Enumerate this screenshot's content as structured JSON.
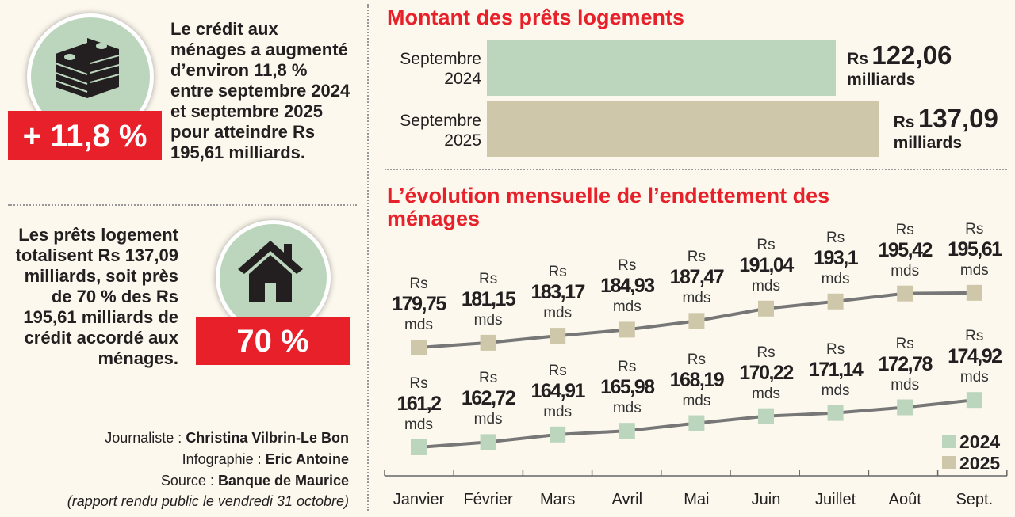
{
  "left": {
    "stat1": {
      "icon": "money-stack-icon",
      "badge": "+ 11,8 %",
      "text": "Le crédit aux ménages a augmenté d’environ 11,8 % entre septembre 2024 et septembre 2025 pour atteindre Rs 195,61 milliards."
    },
    "stat2": {
      "icon": "house-icon",
      "badge": "70 %",
      "text": "Les prêts logement totalisent Rs 137,09 milliards, soit près de 70 % des Rs 195,61 milliards de crédit accordé aux ménages."
    },
    "credits": {
      "journaliste_label": "Journaliste : ",
      "journaliste": "Christina Vilbrin-Le Bon",
      "infographie_label": "Infographie : ",
      "infographie": "Eric Antoine",
      "source_label": "Source : ",
      "source": "Banque de Maurice",
      "note": "(rapport rendu public le vendredi 31 octobre)"
    }
  },
  "colors": {
    "accent": "#e8202a",
    "y2024": "#bcd6bd",
    "y2025": "#cfc7a9",
    "line": "#777777"
  },
  "chart_data": [
    {
      "type": "bar",
      "orientation": "horizontal",
      "title": "Montant des prêts logements",
      "categories": [
        "Septembre 2024",
        "Septembre 2025"
      ],
      "values": [
        122.06,
        137.09
      ],
      "data_labels": [
        {
          "prefix": "Rs",
          "value": "122,06",
          "unit": "milliards"
        },
        {
          "prefix": "Rs",
          "value": "137,09",
          "unit": "milliards"
        }
      ]
    },
    {
      "type": "line",
      "title": "L’évolution mensuelle de l’endettement des ménages",
      "categories": [
        "Janvier",
        "Février",
        "Mars",
        "Avril",
        "Mai",
        "Juin",
        "Juillet",
        "Août",
        "Sept."
      ],
      "legend": "bottom-right",
      "label_prefix": "Rs",
      "label_unit": "mds",
      "series": [
        {
          "name": "2024",
          "values": [
            161.2,
            162.72,
            164.91,
            165.98,
            168.19,
            170.22,
            171.14,
            172.78,
            174.92
          ],
          "labels": [
            "161,2",
            "162,72",
            "164,91",
            "165,98",
            "168,19",
            "170,22",
            "171,14",
            "172,78",
            "174,92"
          ]
        },
        {
          "name": "2025",
          "values": [
            179.75,
            181.15,
            183.17,
            184.93,
            187.47,
            191.04,
            193.1,
            195.42,
            195.61
          ],
          "labels": [
            "179,75",
            "181,15",
            "183,17",
            "184,93",
            "187,47",
            "191,04",
            "193,1",
            "195,42",
            "195,61"
          ]
        }
      ]
    }
  ]
}
